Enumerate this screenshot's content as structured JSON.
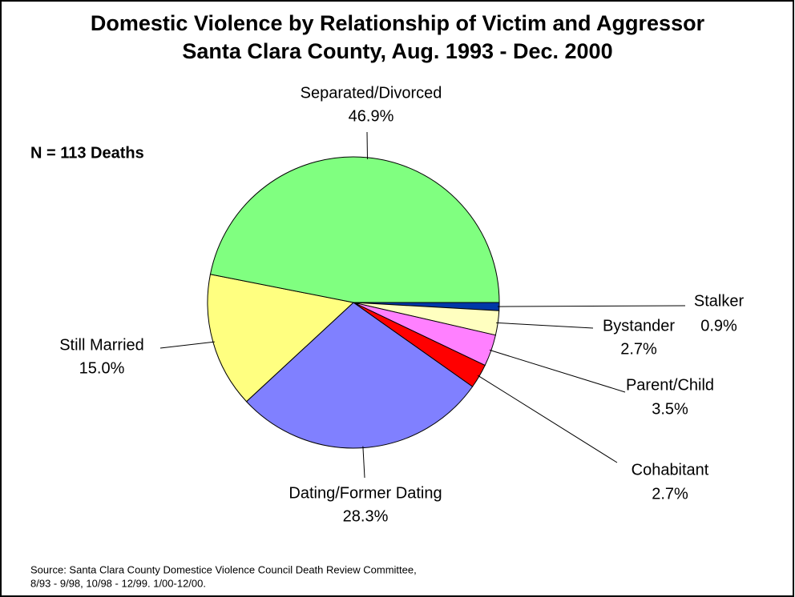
{
  "chart_data": {
    "type": "pie",
    "title": "Domestic Violence by Relationship of Victim and Aggressor",
    "subtitle": "Santa Clara County, Aug. 1993 - Dec. 2000",
    "annotation": "N = 113 Deaths",
    "source": [
      "Source: Santa Clara County Domestice Violence Council Death Review Committee,",
      "8/93 - 9/98, 10/98 - 12/99. 1/00-12/00."
    ],
    "categories": [
      "Stalker",
      "Bystander",
      "Parent/Child",
      "Cohabitant",
      "Dating/Former Dating",
      "Still Married",
      "Separated/Divorced"
    ],
    "values": [
      0.9,
      2.7,
      3.5,
      2.7,
      28.3,
      15.0,
      46.9
    ],
    "value_labels": [
      "0.9%",
      "2.7%",
      "3.5%",
      "2.7%",
      "28.3%",
      "15.0%",
      "46.9%"
    ],
    "colors": [
      "#0038a8",
      "#ffffc0",
      "#ff80ff",
      "#ff0000",
      "#8080ff",
      "#ffff80",
      "#80ff80"
    ]
  }
}
